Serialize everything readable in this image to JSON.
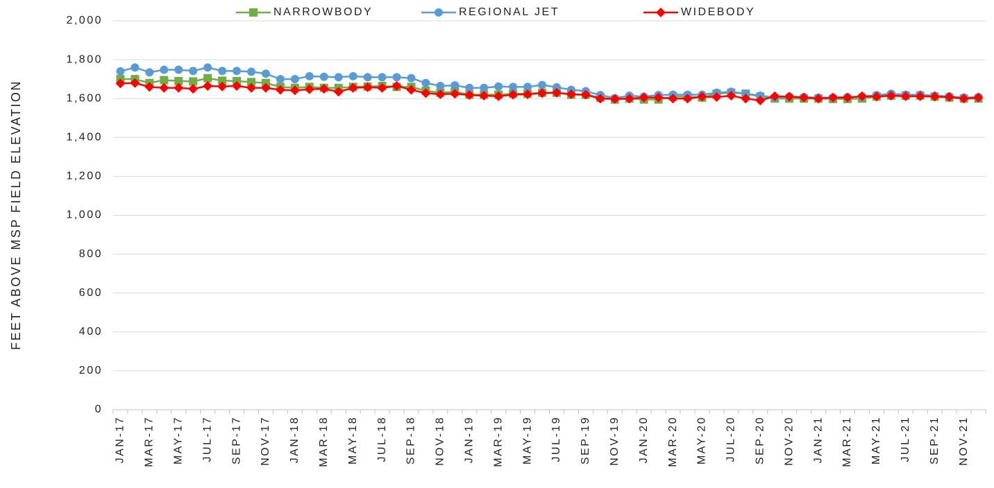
{
  "chart_data": {
    "type": "line",
    "y_label": "FEET ABOVE MSP FIELD ELEVATION",
    "categories": [
      "JAN-17",
      null,
      "MAR-17",
      null,
      "MAY-17",
      null,
      "JUL-17",
      null,
      "SEP-17",
      null,
      "NOV-17",
      null,
      "JAN-18",
      null,
      "MAR-18",
      null,
      "MAY-18",
      null,
      "JUL-18",
      null,
      "SEP-18",
      null,
      "NOV-18",
      null,
      "JAN-19",
      null,
      "MAR-19",
      null,
      "MAY-19",
      null,
      "JUL-19",
      null,
      "SEP-19",
      null,
      "NOV-19",
      null,
      "JAN-20",
      null,
      "MAR-20",
      null,
      "MAY-20",
      null,
      "JUL-20",
      null,
      "SEP-20",
      null,
      "NOV-20",
      null,
      "JAN-21",
      null,
      "MAR-21",
      null,
      "MAY-21",
      null,
      "JUL-21",
      null,
      "SEP-21",
      null,
      "NOV-21",
      null
    ],
    "series": [
      {
        "name": "NARROWBODY",
        "color": "#70ad47",
        "marker": "square",
        "values": [
          1700,
          1700,
          1680,
          1695,
          1690,
          1688,
          1705,
          1692,
          1690,
          1685,
          1680,
          1660,
          1655,
          1660,
          1655,
          1655,
          1660,
          1662,
          1665,
          1660,
          1660,
          1640,
          1630,
          1635,
          1620,
          1620,
          1620,
          1625,
          1625,
          1630,
          1630,
          1620,
          1620,
          1605,
          1595,
          1600,
          1595,
          1595,
          1610,
          1610,
          1605,
          1625,
          1630,
          1625,
          1610,
          1600,
          1600,
          1600,
          1600,
          1598,
          1598,
          1600,
          1610,
          1615,
          1615,
          1615,
          1610,
          1605,
          1600,
          1600
        ]
      },
      {
        "name": "REGIONAL JET",
        "color": "#5b9bd5",
        "marker": "circle",
        "values": [
          1740,
          1760,
          1735,
          1748,
          1748,
          1742,
          1760,
          1742,
          1742,
          1738,
          1728,
          1700,
          1700,
          1715,
          1712,
          1710,
          1715,
          1710,
          1710,
          1710,
          1705,
          1680,
          1665,
          1668,
          1655,
          1655,
          1662,
          1660,
          1660,
          1670,
          1658,
          1645,
          1638,
          1618,
          1602,
          1615,
          1610,
          1618,
          1620,
          1620,
          1620,
          1630,
          1635,
          1625,
          1615,
          1605,
          1610,
          1608,
          1605,
          1605,
          1608,
          1610,
          1618,
          1625,
          1620,
          1620,
          1615,
          1612,
          1605,
          1608
        ]
      },
      {
        "name": "WIDEBODY",
        "color": "#ff0000",
        "marker": "diamond",
        "values": [
          1678,
          1680,
          1660,
          1655,
          1655,
          1650,
          1665,
          1662,
          1665,
          1655,
          1655,
          1645,
          1642,
          1648,
          1650,
          1635,
          1655,
          1658,
          1655,
          1665,
          1645,
          1628,
          1622,
          1625,
          1618,
          1615,
          1612,
          1620,
          1622,
          1628,
          1630,
          1622,
          1620,
          1600,
          1598,
          1600,
          1605,
          1605,
          1600,
          1600,
          1610,
          1608,
          1615,
          1600,
          1590,
          1612,
          1610,
          1605,
          1600,
          1605,
          1605,
          1612,
          1610,
          1615,
          1612,
          1612,
          1610,
          1608,
          1600,
          1605
        ]
      }
    ],
    "ylim": [
      0,
      2000
    ],
    "yticks": [
      0,
      200,
      400,
      600,
      800,
      {
        "value": 1000,
        "label": "1,000"
      },
      {
        "value": 1200,
        "label": "1,200"
      },
      {
        "value": 1400,
        "label": "1,400"
      },
      {
        "value": 1600,
        "label": "1,600"
      },
      {
        "value": 1800,
        "label": "1,800"
      },
      {
        "value": 2000,
        "label": "2,000"
      }
    ],
    "grid": true,
    "legend": "top"
  }
}
